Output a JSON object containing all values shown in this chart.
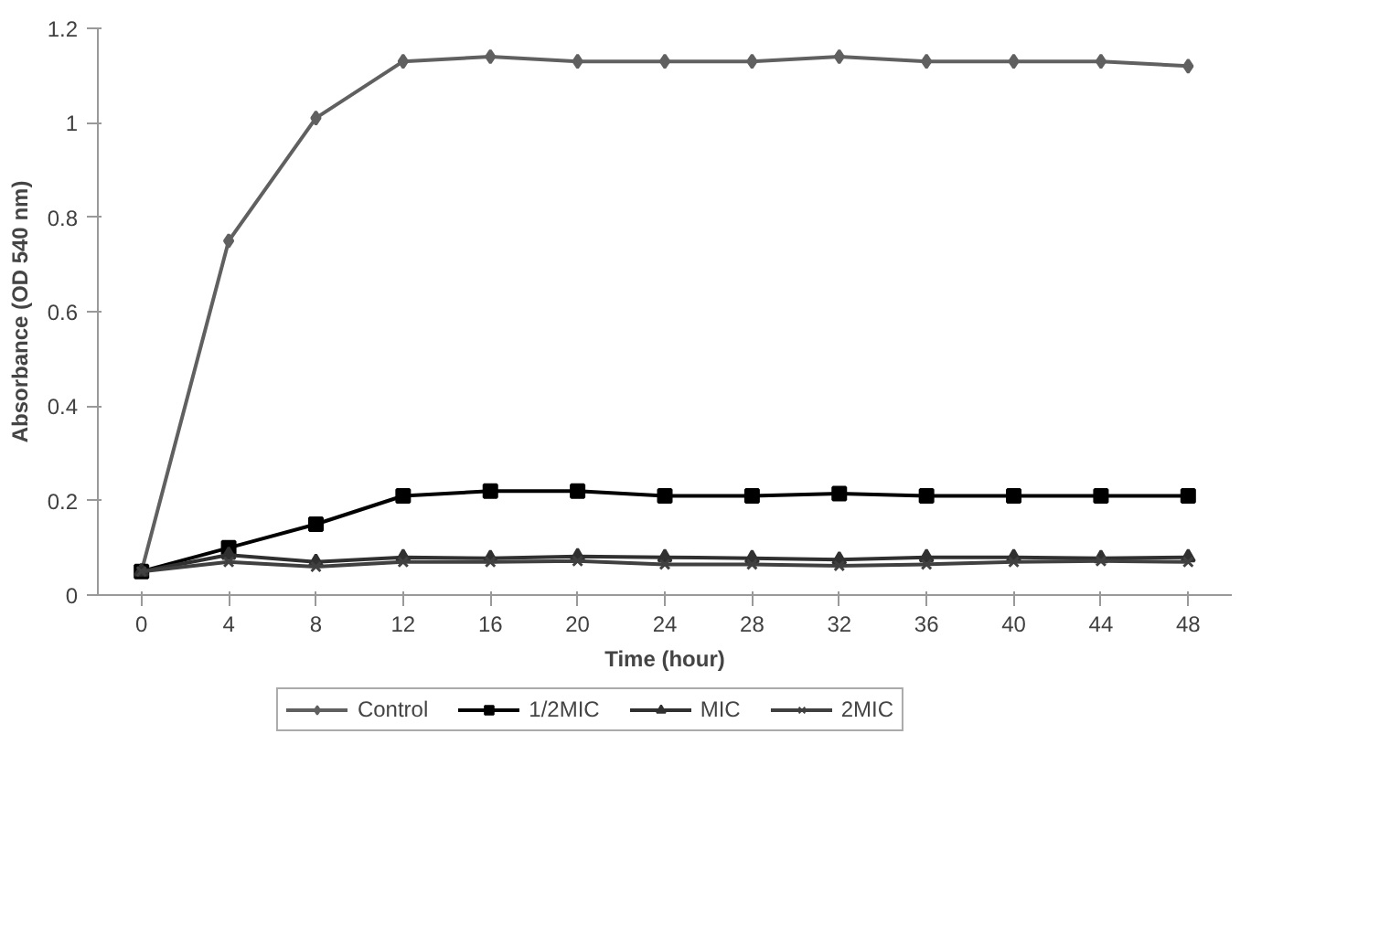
{
  "chart_data": {
    "type": "line",
    "xlabel": "Time (hour)",
    "ylabel": "Absorbance (OD 540 nm)",
    "x": [
      0,
      4,
      8,
      12,
      16,
      20,
      24,
      28,
      32,
      36,
      40,
      44,
      48
    ],
    "xlim": [
      -2,
      50
    ],
    "xticks": [
      0,
      4,
      8,
      12,
      16,
      20,
      24,
      28,
      32,
      36,
      40,
      44,
      48
    ],
    "ylim": [
      0,
      1.2
    ],
    "yticks": [
      {
        "value": 0,
        "label": "0"
      },
      0.2,
      0.4,
      0.6,
      0.8,
      {
        "value": 1,
        "label": "1"
      },
      1.2
    ],
    "grid": false,
    "legend": "bottom",
    "series": [
      {
        "name": "Control",
        "color": "#606060",
        "marker": "diamond",
        "values": [
          0.05,
          0.75,
          1.01,
          1.13,
          1.14,
          1.13,
          1.13,
          1.13,
          1.14,
          1.13,
          1.13,
          1.13,
          1.12
        ]
      },
      {
        "name": "1/2MIC",
        "color": "#000000",
        "marker": "square",
        "values": [
          0.05,
          0.1,
          0.15,
          0.21,
          0.22,
          0.22,
          0.21,
          0.21,
          0.215,
          0.21,
          0.21,
          0.21,
          0.21
        ]
      },
      {
        "name": "MIC",
        "color": "#303030",
        "marker": "triangle",
        "values": [
          0.05,
          0.085,
          0.07,
          0.08,
          0.078,
          0.082,
          0.08,
          0.078,
          0.075,
          0.08,
          0.08,
          0.078,
          0.08
        ]
      },
      {
        "name": "2MIC",
        "color": "#404040",
        "marker": "cross",
        "values": [
          0.05,
          0.07,
          0.06,
          0.07,
          0.07,
          0.072,
          0.065,
          0.065,
          0.062,
          0.065,
          0.07,
          0.072,
          0.07
        ]
      }
    ]
  }
}
